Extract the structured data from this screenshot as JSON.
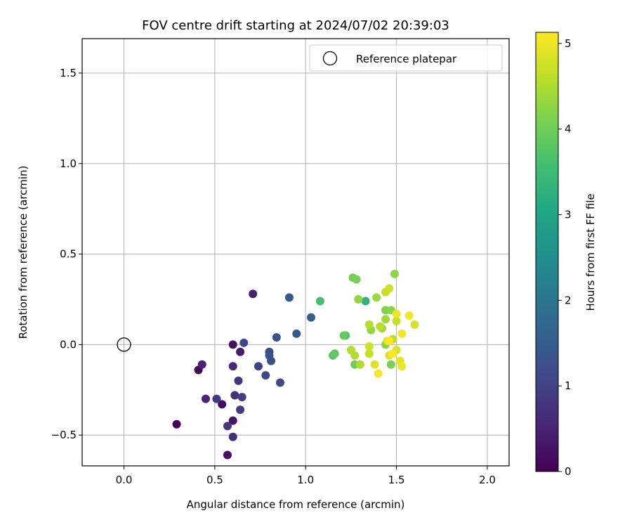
{
  "chart_data": {
    "type": "scatter",
    "title": "FOV centre drift starting at 2024/07/02 20:39:03",
    "xlabel": "Angular distance from reference (arcmin)",
    "ylabel": "Rotation from reference (arcmin)",
    "xlim": [
      -0.23,
      2.12
    ],
    "ylim": [
      -0.67,
      1.69
    ],
    "xticks": [
      0.0,
      0.5,
      1.0,
      1.5,
      2.0
    ],
    "xtick_labels": [
      "0.0",
      "0.5",
      "1.0",
      "1.5",
      "2.0"
    ],
    "yticks": [
      -0.5,
      0.0,
      0.5,
      1.0,
      1.5
    ],
    "ytick_labels": [
      "−0.5",
      "0.0",
      "0.5",
      "1.0",
      "1.5"
    ],
    "grid": true,
    "legend": {
      "position": "top-right",
      "entries": [
        {
          "label": "Reference platepar",
          "marker": "open-circle"
        }
      ]
    },
    "reference_point": {
      "x": 0.0,
      "y": 0.0
    },
    "colorbar": {
      "label": "Hours from first FF file",
      "range": [
        0,
        5.13
      ],
      "ticks": [
        0,
        1,
        2,
        3,
        4,
        5
      ],
      "tick_labels": [
        "0",
        "1",
        "2",
        "3",
        "4",
        "5"
      ],
      "colormap": "viridis"
    },
    "points": [
      {
        "x": 0.29,
        "y": -0.44,
        "c": 0.05
      },
      {
        "x": 0.41,
        "y": -0.14,
        "c": 0.1
      },
      {
        "x": 0.54,
        "y": -0.33,
        "c": 0.15
      },
      {
        "x": 0.57,
        "y": -0.61,
        "c": 0.2
      },
      {
        "x": 0.6,
        "y": 0.0,
        "c": 0.25
      },
      {
        "x": 0.6,
        "y": -0.42,
        "c": 0.3
      },
      {
        "x": 0.64,
        "y": -0.04,
        "c": 0.4
      },
      {
        "x": 0.71,
        "y": 0.28,
        "c": 0.45
      },
      {
        "x": 0.43,
        "y": -0.11,
        "c": 0.5
      },
      {
        "x": 0.45,
        "y": -0.3,
        "c": 0.55
      },
      {
        "x": 0.6,
        "y": -0.12,
        "c": 0.6
      },
      {
        "x": 0.6,
        "y": -0.51,
        "c": 0.65
      },
      {
        "x": 0.61,
        "y": -0.28,
        "c": 0.7
      },
      {
        "x": 0.63,
        "y": -0.2,
        "c": 0.75
      },
      {
        "x": 0.57,
        "y": -0.45,
        "c": 0.8
      },
      {
        "x": 0.51,
        "y": -0.3,
        "c": 0.85
      },
      {
        "x": 0.64,
        "y": -0.36,
        "c": 0.9
      },
      {
        "x": 0.65,
        "y": -0.29,
        "c": 0.95
      },
      {
        "x": 0.74,
        "y": -0.12,
        "c": 1.0
      },
      {
        "x": 0.78,
        "y": -0.17,
        "c": 1.05
      },
      {
        "x": 0.66,
        "y": 0.01,
        "c": 1.1
      },
      {
        "x": 0.86,
        "y": -0.21,
        "c": 1.15
      },
      {
        "x": 0.8,
        "y": -0.04,
        "c": 1.2
      },
      {
        "x": 0.81,
        "y": -0.09,
        "c": 1.25
      },
      {
        "x": 0.84,
        "y": 0.04,
        "c": 1.3
      },
      {
        "x": 0.8,
        "y": -0.06,
        "c": 1.35
      },
      {
        "x": 0.91,
        "y": 0.26,
        "c": 1.4
      },
      {
        "x": 0.95,
        "y": 0.06,
        "c": 1.45
      },
      {
        "x": 1.03,
        "y": 0.15,
        "c": 1.6
      },
      {
        "x": 1.33,
        "y": 0.24,
        "c": 3.3
      },
      {
        "x": 1.08,
        "y": 0.24,
        "c": 3.6
      },
      {
        "x": 1.22,
        "y": 0.05,
        "c": 3.7
      },
      {
        "x": 1.15,
        "y": -0.06,
        "c": 3.75
      },
      {
        "x": 1.16,
        "y": -0.05,
        "c": 3.85
      },
      {
        "x": 1.21,
        "y": 0.05,
        "c": 3.9
      },
      {
        "x": 1.27,
        "y": -0.11,
        "c": 4.0
      },
      {
        "x": 1.26,
        "y": 0.37,
        "c": 4.05
      },
      {
        "x": 1.28,
        "y": 0.36,
        "c": 4.1
      },
      {
        "x": 1.47,
        "y": -0.11,
        "c": 4.1
      },
      {
        "x": 1.44,
        "y": 0.19,
        "c": 4.15
      },
      {
        "x": 1.47,
        "y": 0.19,
        "c": 4.2
      },
      {
        "x": 1.49,
        "y": 0.39,
        "c": 4.25
      },
      {
        "x": 1.44,
        "y": -0.0,
        "c": 4.2
      },
      {
        "x": 1.29,
        "y": 0.25,
        "c": 4.3
      },
      {
        "x": 1.36,
        "y": 0.08,
        "c": 4.3
      },
      {
        "x": 1.42,
        "y": 0.09,
        "c": 4.35
      },
      {
        "x": 1.39,
        "y": 0.26,
        "c": 4.35
      },
      {
        "x": 1.44,
        "y": 0.14,
        "c": 4.4
      },
      {
        "x": 1.3,
        "y": -0.11,
        "c": 4.5
      },
      {
        "x": 1.27,
        "y": -0.06,
        "c": 4.5
      },
      {
        "x": 1.35,
        "y": 0.11,
        "c": 4.55
      },
      {
        "x": 1.25,
        "y": -0.03,
        "c": 4.55
      },
      {
        "x": 1.41,
        "y": 0.1,
        "c": 4.6
      },
      {
        "x": 1.48,
        "y": 0.03,
        "c": 4.6
      },
      {
        "x": 1.35,
        "y": -0.05,
        "c": 4.65
      },
      {
        "x": 1.44,
        "y": 0.29,
        "c": 4.7
      },
      {
        "x": 1.5,
        "y": 0.13,
        "c": 4.7
      },
      {
        "x": 1.46,
        "y": 0.31,
        "c": 4.75
      },
      {
        "x": 1.35,
        "y": -0.01,
        "c": 4.75
      },
      {
        "x": 1.45,
        "y": 0.02,
        "c": 4.8
      },
      {
        "x": 1.6,
        "y": 0.11,
        "c": 4.8
      },
      {
        "x": 1.5,
        "y": -0.03,
        "c": 4.85
      },
      {
        "x": 1.38,
        "y": -0.11,
        "c": 4.9
      },
      {
        "x": 1.46,
        "y": -0.06,
        "c": 4.9
      },
      {
        "x": 1.52,
        "y": -0.09,
        "c": 4.95
      },
      {
        "x": 1.53,
        "y": -0.12,
        "c": 5.0
      },
      {
        "x": 1.5,
        "y": 0.17,
        "c": 5.0
      },
      {
        "x": 1.57,
        "y": 0.16,
        "c": 5.05
      },
      {
        "x": 1.53,
        "y": 0.06,
        "c": 5.05
      },
      {
        "x": 1.4,
        "y": -0.16,
        "c": 5.1
      },
      {
        "x": 1.46,
        "y": 0.02,
        "c": 5.1
      },
      {
        "x": 1.48,
        "y": -0.05,
        "c": 5.1
      }
    ]
  }
}
